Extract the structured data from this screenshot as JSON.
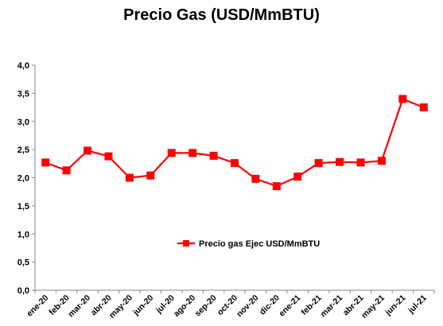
{
  "chart_data": {
    "type": "line",
    "title": "Precio Gas (USD/MmBTU)",
    "xlabel": "",
    "ylabel": "",
    "ylim": [
      0,
      4
    ],
    "yticks": [
      "0,0",
      "0,5",
      "1,0",
      "1,5",
      "2,0",
      "2,5",
      "3,0",
      "3,5",
      "4,0"
    ],
    "grid": false,
    "legend_position": "center",
    "categories": [
      "ene-20",
      "feb-20",
      "mar-20",
      "abr-20",
      "may-20",
      "jun-20",
      "jul-20",
      "ago-20",
      "sep-20",
      "oct-20",
      "nov-20",
      "dic-20",
      "ene-21",
      "feb-21",
      "mar-21",
      "abr-21",
      "may-21",
      "jun-21",
      "jul-21"
    ],
    "series": [
      {
        "name": "Precio gas Ejec USD/MmBTU",
        "color": "#ff0000",
        "values": [
          2.27,
          2.13,
          2.48,
          2.38,
          2.0,
          2.04,
          2.44,
          2.44,
          2.39,
          2.26,
          1.98,
          1.85,
          2.02,
          2.26,
          2.28,
          2.27,
          2.3,
          3.4,
          3.25
        ]
      }
    ]
  }
}
